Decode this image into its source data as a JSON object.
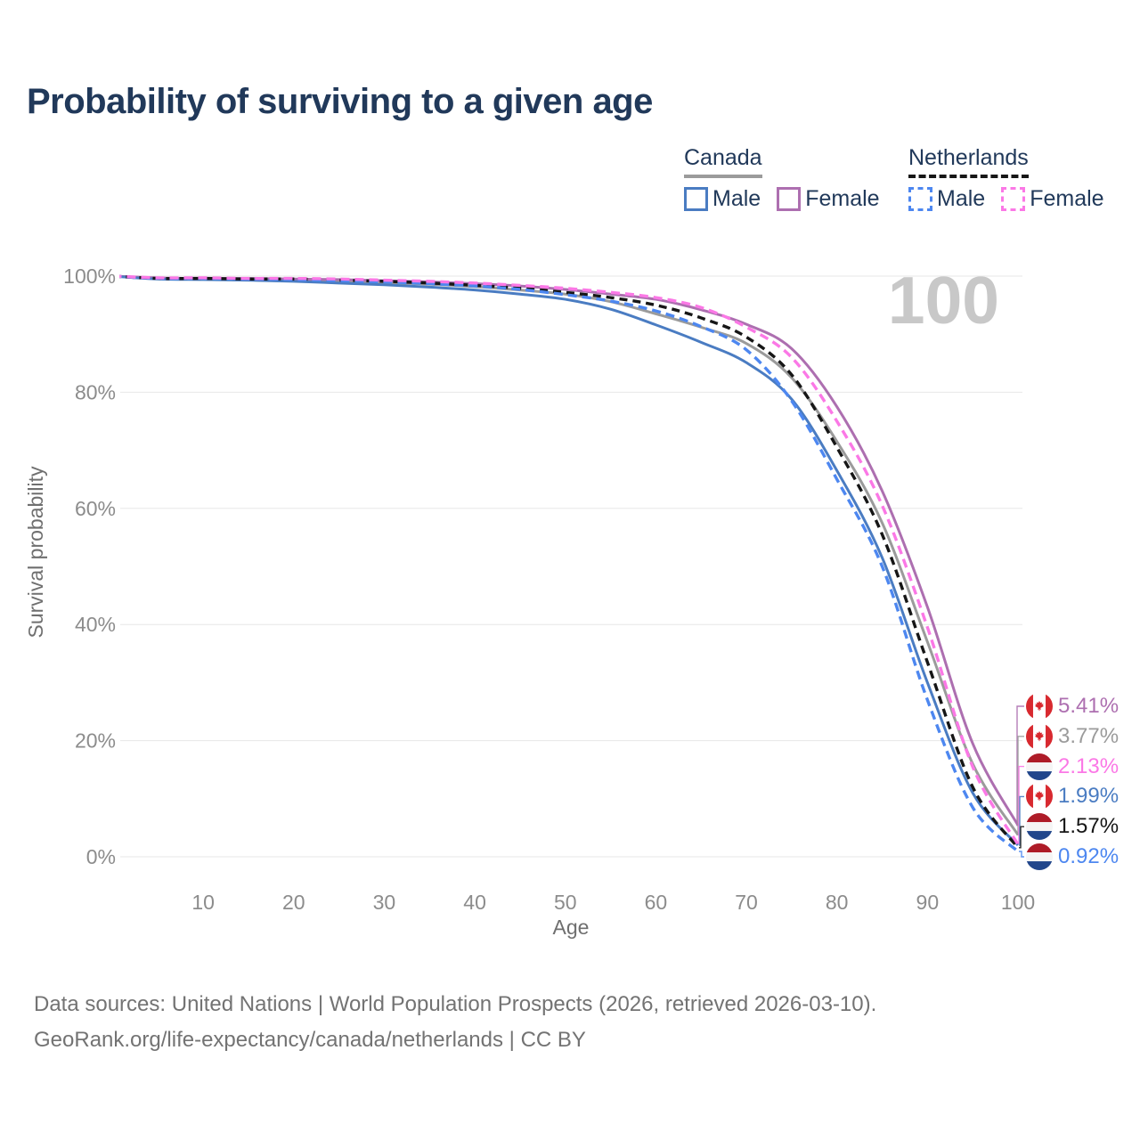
{
  "header": {
    "title": "Probability of surviving to a given age"
  },
  "watermark": "100",
  "legend": {
    "canada": {
      "title": "Canada",
      "male_label": "Male",
      "female_label": "Female"
    },
    "netherlands": {
      "title": "Netherlands",
      "male_label": "Male",
      "female_label": "Female"
    }
  },
  "axes": {
    "x": {
      "label": "Age",
      "ticks": [
        10,
        20,
        30,
        40,
        50,
        60,
        70,
        80,
        90,
        100
      ],
      "min": 0,
      "max": 100
    },
    "y": {
      "label": "Survival probability",
      "ticks": [
        "0%",
        "20%",
        "40%",
        "60%",
        "80%",
        "100%"
      ],
      "tick_values": [
        0,
        20,
        40,
        60,
        80,
        100
      ]
    }
  },
  "end_labels": [
    {
      "flag": "canada",
      "series": "Canada Female",
      "value": "5.41%",
      "color": "#ad6fb0"
    },
    {
      "flag": "canada",
      "series": "Canada",
      "value": "3.77%",
      "color": "#9b9b9b"
    },
    {
      "flag": "netherlands",
      "series": "Netherlands Female",
      "value": "2.13%",
      "color": "#fb78e6"
    },
    {
      "flag": "canada",
      "series": "Canada Male",
      "value": "1.99%",
      "color": "#4a7cc2"
    },
    {
      "flag": "netherlands",
      "series": "Netherlands",
      "value": "1.57%",
      "color": "#161616"
    },
    {
      "flag": "netherlands",
      "series": "Netherlands Male",
      "value": "0.92%",
      "color": "#4d87f0"
    }
  ],
  "chart_data": {
    "type": "line",
    "title": "Probability of surviving to a given age",
    "xlabel": "Age",
    "ylabel": "Survival probability",
    "xlim": [
      0,
      100
    ],
    "ylim": [
      0,
      100
    ],
    "grid": "horizontal",
    "legend_position": "top-right",
    "x": [
      0,
      5,
      10,
      15,
      20,
      25,
      30,
      35,
      40,
      45,
      50,
      55,
      60,
      65,
      70,
      75,
      80,
      85,
      90,
      95,
      100
    ],
    "series": [
      {
        "name": "Canada",
        "style": "solid",
        "color": "#9b9b9b",
        "dash": "",
        "values": [
          100,
          99.6,
          99.5,
          99.5,
          99.3,
          99.1,
          98.9,
          98.6,
          98.2,
          97.6,
          96.9,
          95.6,
          93.5,
          91.2,
          88.4,
          82.5,
          71.5,
          57.5,
          37.0,
          16.0,
          3.77
        ]
      },
      {
        "name": "Canada Female",
        "style": "solid",
        "color": "#ad6fb0",
        "dash": "",
        "values": [
          100,
          99.7,
          99.6,
          99.6,
          99.5,
          99.4,
          99.2,
          99.0,
          98.7,
          98.3,
          97.7,
          96.9,
          96.0,
          94.2,
          91.7,
          87.5,
          77.5,
          63.0,
          43.0,
          19.5,
          5.41
        ]
      },
      {
        "name": "Canada Male",
        "style": "solid",
        "color": "#4a7cc2",
        "dash": "",
        "values": [
          100,
          99.5,
          99.4,
          99.3,
          99.1,
          98.8,
          98.5,
          98.1,
          97.6,
          96.9,
          96.0,
          94.3,
          91.6,
          88.6,
          85.1,
          78.8,
          66.5,
          51.5,
          30.0,
          11.0,
          1.99
        ]
      },
      {
        "name": "Netherlands",
        "style": "dashed",
        "color": "#161616",
        "dash": "9 6",
        "values": [
          100,
          99.6,
          99.6,
          99.5,
          99.5,
          99.3,
          99.1,
          98.8,
          98.4,
          97.9,
          97.2,
          96.3,
          95.0,
          92.8,
          89.5,
          83.0,
          70.5,
          55.5,
          33.5,
          12.0,
          1.57
        ]
      },
      {
        "name": "Netherlands Male",
        "style": "dashed",
        "color": "#4d87f0",
        "dash": "10 6",
        "values": [
          100,
          99.6,
          99.6,
          99.5,
          99.4,
          99.2,
          99.0,
          98.7,
          98.3,
          97.7,
          96.8,
          95.7,
          94.0,
          91.3,
          87.3,
          78.5,
          65.0,
          50.0,
          27.0,
          8.5,
          0.92
        ]
      },
      {
        "name": "Netherlands Female",
        "style": "dashed",
        "color": "#fb78e6",
        "dash": "10 6",
        "values": [
          100,
          99.7,
          99.7,
          99.6,
          99.6,
          99.5,
          99.3,
          99.1,
          98.8,
          98.4,
          97.9,
          97.2,
          96.3,
          94.6,
          91.2,
          86.0,
          75.0,
          60.5,
          39.5,
          15.5,
          2.13
        ]
      }
    ]
  },
  "footer": {
    "line1": "Data sources: United Nations | World Population Prospects (2026, retrieved 2026-03-10).",
    "line2": "GeoRank.org/life-expectancy/canada/netherlands | CC BY"
  }
}
